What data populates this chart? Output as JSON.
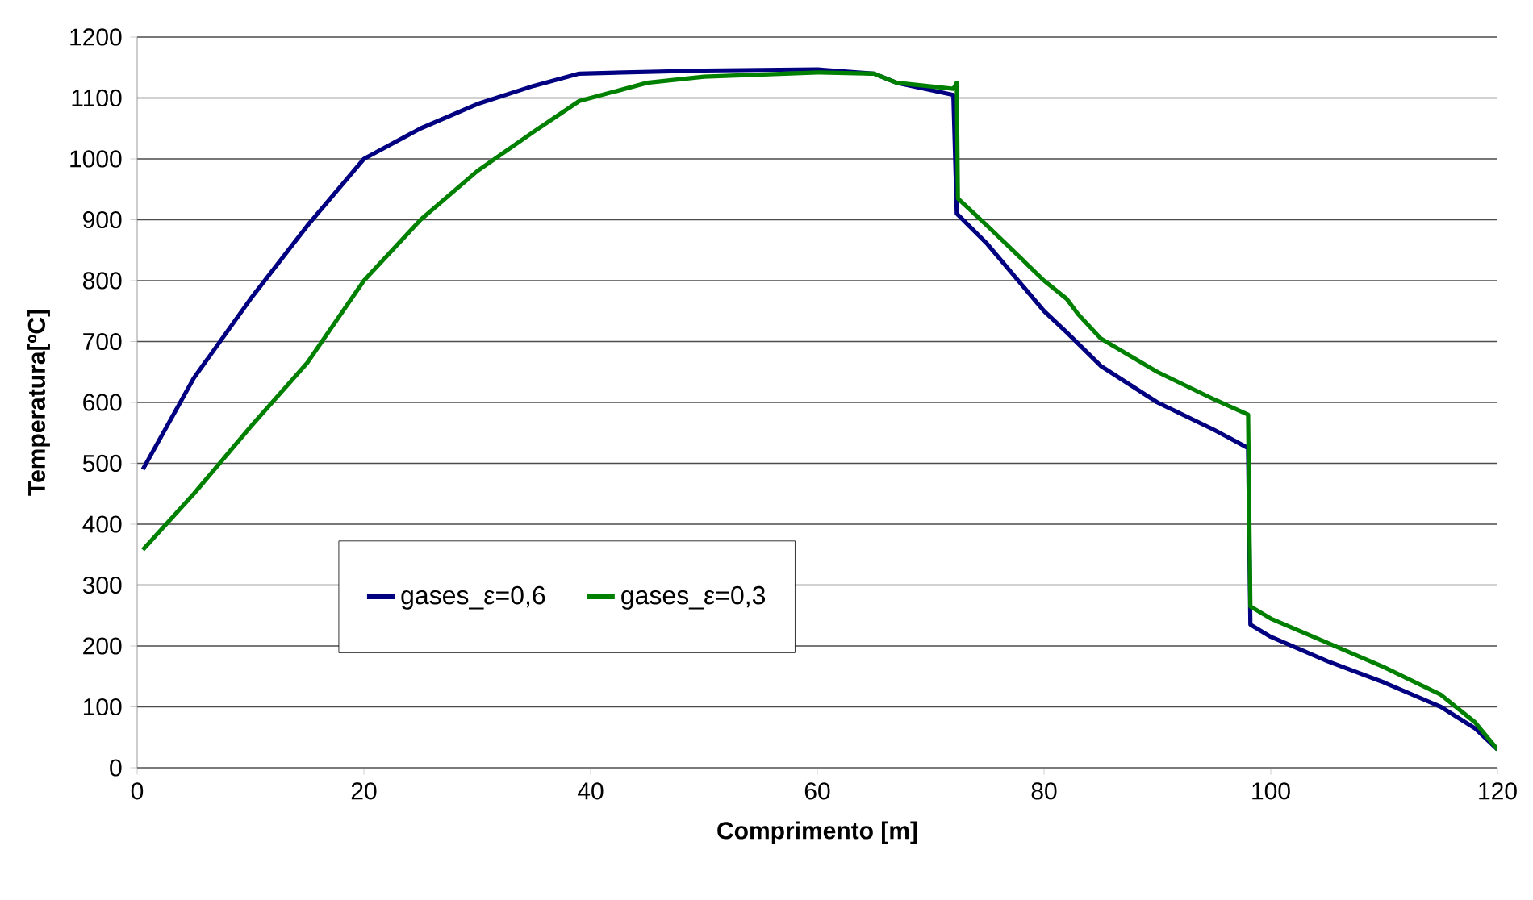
{
  "chart_data": {
    "type": "line",
    "xlabel": "Comprimento [m]",
    "ylabel": "Temperatura[ºC]",
    "xlim": [
      0,
      120
    ],
    "xticks": [
      0,
      20,
      40,
      60,
      80,
      100,
      120
    ],
    "ylim": [
      0,
      1200
    ],
    "yticks": [
      0,
      100,
      200,
      300,
      400,
      500,
      600,
      700,
      800,
      900,
      1000,
      1100,
      1200
    ],
    "grid": "y",
    "legend": "left",
    "marker": "none",
    "line_style": "solid",
    "series": [
      {
        "name": "gases_ε=0,6",
        "color": "#000080",
        "x": [
          0.5,
          5,
          10,
          15,
          20,
          25,
          30,
          35,
          39,
          50,
          60,
          65,
          67,
          72,
          72.3,
          75,
          80,
          82,
          85,
          90,
          95,
          98,
          98.2,
          100,
          105,
          110,
          115,
          118,
          120
        ],
        "values": [
          490,
          640,
          770,
          890,
          1000,
          1050,
          1090,
          1120,
          1140,
          1145,
          1147,
          1140,
          1125,
          1105,
          910,
          860,
          750,
          715,
          660,
          600,
          555,
          525,
          235,
          215,
          175,
          140,
          100,
          65,
          30
        ]
      },
      {
        "name": "gases_ε=0,3",
        "color": "#008000",
        "x": [
          0.5,
          5,
          10,
          15,
          20,
          25,
          30,
          35,
          39,
          45,
          50,
          60,
          65,
          67,
          72,
          72.3,
          72.4,
          75,
          80,
          82,
          83,
          85,
          90,
          95,
          98,
          98.2,
          100,
          105,
          110,
          115,
          118,
          120
        ],
        "values": [
          358,
          450,
          560,
          665,
          800,
          900,
          980,
          1045,
          1095,
          1125,
          1135,
          1142,
          1140,
          1125,
          1115,
          1125,
          935,
          890,
          800,
          770,
          745,
          705,
          650,
          605,
          580,
          265,
          245,
          205,
          165,
          120,
          75,
          30
        ]
      }
    ]
  }
}
